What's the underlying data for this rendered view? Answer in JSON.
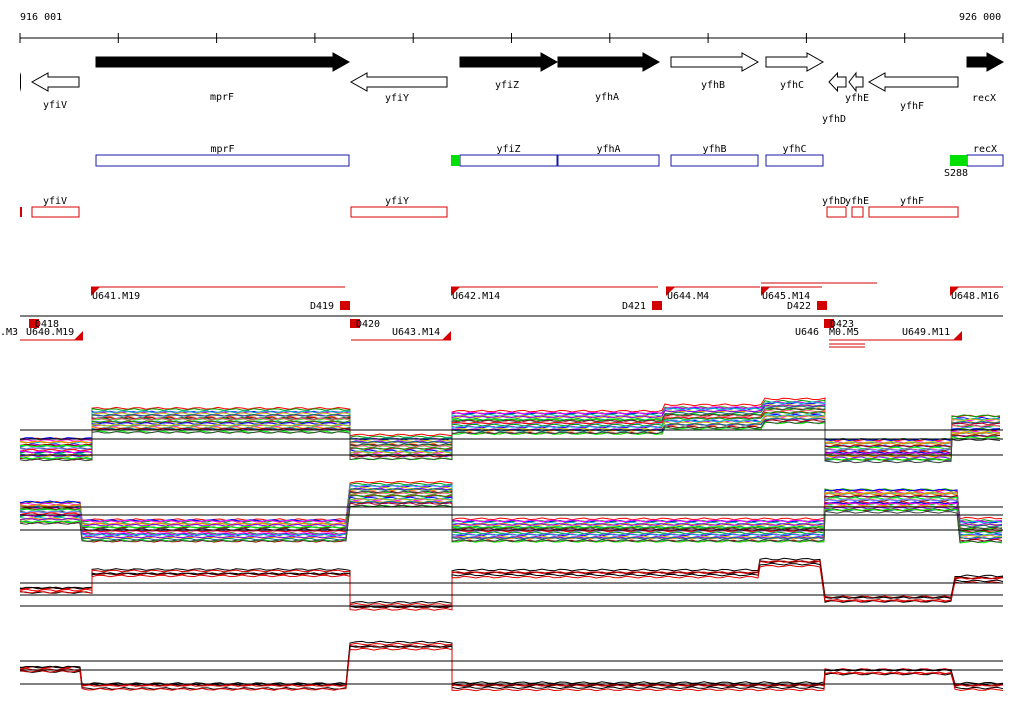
{
  "coords": {
    "start": "916 001",
    "end": "926 000"
  },
  "colors": {
    "gene_fill": "#000000",
    "gene_outline": "#000000",
    "box_blue": "#1a1aa8",
    "box_red": "#d40000",
    "marker_green": "#00e000",
    "trace_red": "#e00000"
  },
  "genes": [
    {
      "name": "yfiV",
      "strand": "-",
      "filled": false
    },
    {
      "name": "mprF",
      "strand": "+",
      "filled": true
    },
    {
      "name": "yfiY",
      "strand": "-",
      "filled": false
    },
    {
      "name": "yfiZ",
      "strand": "+",
      "filled": true
    },
    {
      "name": "yfhA",
      "strand": "+",
      "filled": true
    },
    {
      "name": "yfhB",
      "strand": "+",
      "filled": false
    },
    {
      "name": "yfhC",
      "strand": "+",
      "filled": false
    },
    {
      "name": "yfhD",
      "strand": "-",
      "filled": false
    },
    {
      "name": "yfhE",
      "strand": "-",
      "filled": false
    },
    {
      "name": "yfhF",
      "strand": "-",
      "filled": false
    },
    {
      "name": "recX",
      "strand": "+",
      "filled": true
    }
  ],
  "blue_boxes": [
    "mprF",
    "yfiZ",
    "yfhA",
    "yfhB",
    "yfhC",
    "recX"
  ],
  "green_markers": [
    {
      "label": ""
    },
    {
      "label": "S288"
    }
  ],
  "red_boxes": [
    "yfiV",
    "yfiY",
    "yfhD",
    "yfhE",
    "yfhF"
  ],
  "segments": [
    {
      "label": "U641.M19"
    },
    {
      "label": "D419"
    },
    {
      "label": "U642.M14"
    },
    {
      "label": "D421"
    },
    {
      "label": "U644.M4"
    },
    {
      "label": "U645.M14"
    },
    {
      "label": "D422"
    },
    {
      "label": "U648.M16"
    },
    {
      "label": ".M3"
    },
    {
      "label": "D418"
    },
    {
      "label": "U640.M19"
    },
    {
      "label": "D420"
    },
    {
      "label": "U643.M14"
    },
    {
      "label": "U646"
    },
    {
      "label": "D423"
    },
    {
      "label": "M0.M5"
    },
    {
      "label": "U649.M11"
    }
  ],
  "panels": [
    {
      "name": "tiling-profile-1"
    },
    {
      "name": "tiling-profile-2"
    },
    {
      "name": "tiling-profile-3"
    },
    {
      "name": "tiling-profile-4"
    }
  ]
}
